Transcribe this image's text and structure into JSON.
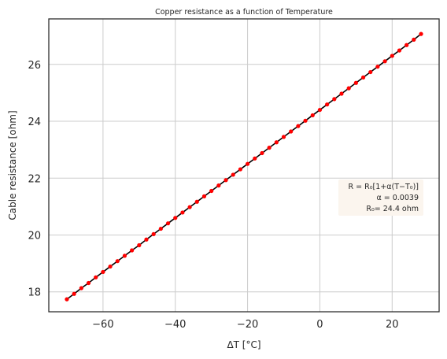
{
  "chart_data": {
    "type": "line",
    "title": "Copper resistance as a function of Temperature",
    "xlabel": "ΔT [°C]",
    "ylabel": "Cable resistance [ohm]",
    "xlim": [
      -75,
      33
    ],
    "ylim": [
      17.3,
      27.6
    ],
    "xticks": [
      -60,
      -40,
      -20,
      0,
      20
    ],
    "xtick_labels": [
      "−60",
      "−40",
      "−20",
      "0",
      "20"
    ],
    "yticks": [
      18,
      20,
      22,
      24,
      26
    ],
    "ytick_labels": [
      "18",
      "20",
      "22",
      "24",
      "26"
    ],
    "grid": true,
    "series": [
      {
        "marker": "circle",
        "line_color": "#000000",
        "marker_color": "#ff0000",
        "x": [
          -70,
          -68,
          -66,
          -64,
          -62,
          -60,
          -58,
          -56,
          -54,
          -52,
          -50,
          -48,
          -46,
          -44,
          -42,
          -40,
          -38,
          -36,
          -34,
          -32,
          -30,
          -28,
          -26,
          -24,
          -22,
          -20,
          -18,
          -16,
          -14,
          -12,
          -10,
          -8,
          -6,
          -4,
          -2,
          0,
          2,
          4,
          6,
          8,
          10,
          12,
          14,
          16,
          18,
          20,
          22,
          24,
          26,
          28
        ],
        "y": [
          17.74,
          17.93,
          18.13,
          18.31,
          18.51,
          18.7,
          18.89,
          19.08,
          19.27,
          19.46,
          19.64,
          19.84,
          20.03,
          20.22,
          20.41,
          20.6,
          20.79,
          20.98,
          21.17,
          21.36,
          21.55,
          21.74,
          21.93,
          22.12,
          22.31,
          22.5,
          22.69,
          22.88,
          23.07,
          23.26,
          23.45,
          23.64,
          23.83,
          24.02,
          24.21,
          24.4,
          24.59,
          24.78,
          24.97,
          25.16,
          25.35,
          25.54,
          25.73,
          25.92,
          26.11,
          26.3,
          26.49,
          26.68,
          26.87,
          27.07
        ]
      }
    ],
    "annotation": {
      "line1": "R = R₀[1+α(T−T₀)]",
      "line2": "α = 0.0039",
      "line3": "R₀= 24.4 ohm",
      "position": "center-right",
      "background": "#fbf5ee"
    }
  }
}
